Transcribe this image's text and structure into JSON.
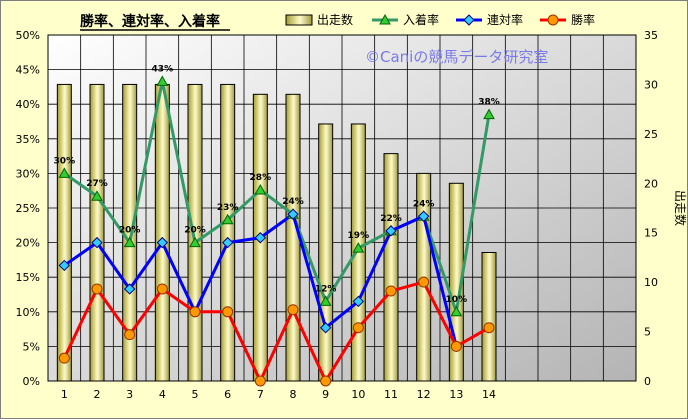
{
  "chart_data": {
    "type": "bar+line",
    "title": "勝率、連対率、入着率",
    "watermark": "©Caniの競馬データ研究室",
    "categories": [
      "1",
      "2",
      "3",
      "4",
      "5",
      "6",
      "7",
      "8",
      "9",
      "10",
      "11",
      "12",
      "13",
      "14"
    ],
    "y_left": {
      "min": 0,
      "max": 50,
      "step": 5,
      "unit": "%",
      "label": ""
    },
    "y_right": {
      "min": 0,
      "max": 35,
      "step": 5,
      "label": "出走数"
    },
    "bars": {
      "name": "出走数",
      "axis": "right",
      "color": "#e6e08a",
      "values": [
        30,
        30,
        30,
        30,
        30,
        30,
        29,
        29,
        26,
        26,
        23,
        21,
        20,
        13
      ]
    },
    "series": [
      {
        "name": "入着率",
        "axis": "left",
        "color": "#339966",
        "marker": "triangle",
        "values": [
          30,
          26.7,
          20,
          43.3,
          20,
          23.3,
          27.6,
          24.1,
          11.5,
          19.2,
          21.7,
          23.8,
          10,
          38.5
        ]
      },
      {
        "name": "連対率",
        "axis": "left",
        "color": "#0000ff",
        "marker": "diamond",
        "values": [
          16.7,
          20,
          13.3,
          20,
          10,
          20,
          20.7,
          24.1,
          7.7,
          11.5,
          21.7,
          23.8,
          5,
          null
        ]
      },
      {
        "name": "勝率",
        "axis": "left",
        "color": "#ff0000",
        "marker": "circle",
        "values": [
          3.3,
          13.3,
          6.7,
          13.3,
          10,
          10,
          0,
          10.3,
          0,
          7.7,
          13,
          14.3,
          5,
          7.7
        ]
      }
    ],
    "data_labels": {
      "series": "入着率",
      "labels": [
        "30%",
        "27%",
        "20%",
        "43%",
        "20%",
        "23%",
        "28%",
        "24%",
        "12%",
        "19%",
        "22%",
        "24%",
        "10%",
        "38%"
      ]
    },
    "grid": true,
    "legend_position": "top"
  }
}
